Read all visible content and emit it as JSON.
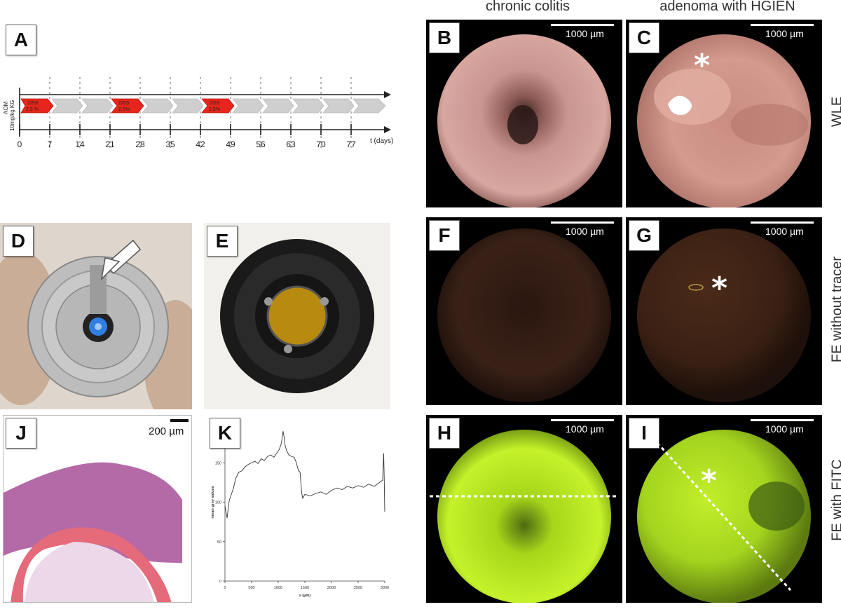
{
  "panels": {
    "A": "A",
    "B": "B",
    "C": "C",
    "D": "D",
    "E": "E",
    "F": "F",
    "G": "G",
    "H": "H",
    "I": "I",
    "J": "J",
    "K": "K"
  },
  "columns": {
    "left": "chronic colitis",
    "right": "adenoma with HGIEN"
  },
  "rows": {
    "wle": "WLE",
    "fe_no_tracer": "FE without tracer",
    "fe_fitc": "FE with FITC"
  },
  "scale": {
    "endoscopy": "1000 µm",
    "histology": "200 µm"
  },
  "asterisk": "*",
  "timeline": {
    "y_label_line1": "AOM",
    "y_label_line2": "10mg/kg KG",
    "dss_label": "DSS",
    "dss_doses": [
      "2,5 %",
      "2,5%",
      "2,5%"
    ],
    "days": [
      "0",
      "7",
      "14",
      "21",
      "28",
      "35",
      "42",
      "49",
      "56",
      "63",
      "70",
      "77"
    ],
    "axis_label": "t (days)"
  },
  "chart_data": {
    "type": "line",
    "title": "",
    "xlabel": "s (µm)",
    "ylabel": "mean grey values",
    "xlim": [
      0,
      3000
    ],
    "ylim": [
      0,
      200
    ],
    "x_ticks": [
      0,
      500,
      1000,
      1500,
      2000,
      2500,
      3000
    ],
    "y_ticks": [
      0,
      50,
      100,
      150,
      200
    ],
    "series": [
      {
        "x": [
          0,
          40,
          80,
          120,
          160,
          200,
          260,
          320,
          380,
          440,
          500,
          560,
          620,
          680,
          740,
          800,
          860,
          920,
          980,
          1020,
          1060,
          1090,
          1110,
          1130,
          1160,
          1200,
          1250,
          1300,
          1340,
          1380,
          1410,
          1440,
          1460,
          1500,
          1600,
          1700,
          1800,
          1900,
          2000,
          2100,
          2200,
          2300,
          2400,
          2500,
          2600,
          2700,
          2800,
          2900,
          2960,
          2980,
          2990,
          3000
        ],
        "y": [
          95,
          80,
          102,
          110,
          118,
          130,
          138,
          140,
          145,
          148,
          150,
          152,
          149,
          155,
          153,
          158,
          160,
          157,
          163,
          167,
          175,
          190,
          183,
          172,
          165,
          160,
          158,
          157,
          150,
          140,
          138,
          112,
          105,
          110,
          108,
          111,
          113,
          110,
          115,
          118,
          116,
          120,
          118,
          121,
          119,
          123,
          120,
          125,
          128,
          162,
          130,
          88
        ]
      }
    ]
  }
}
